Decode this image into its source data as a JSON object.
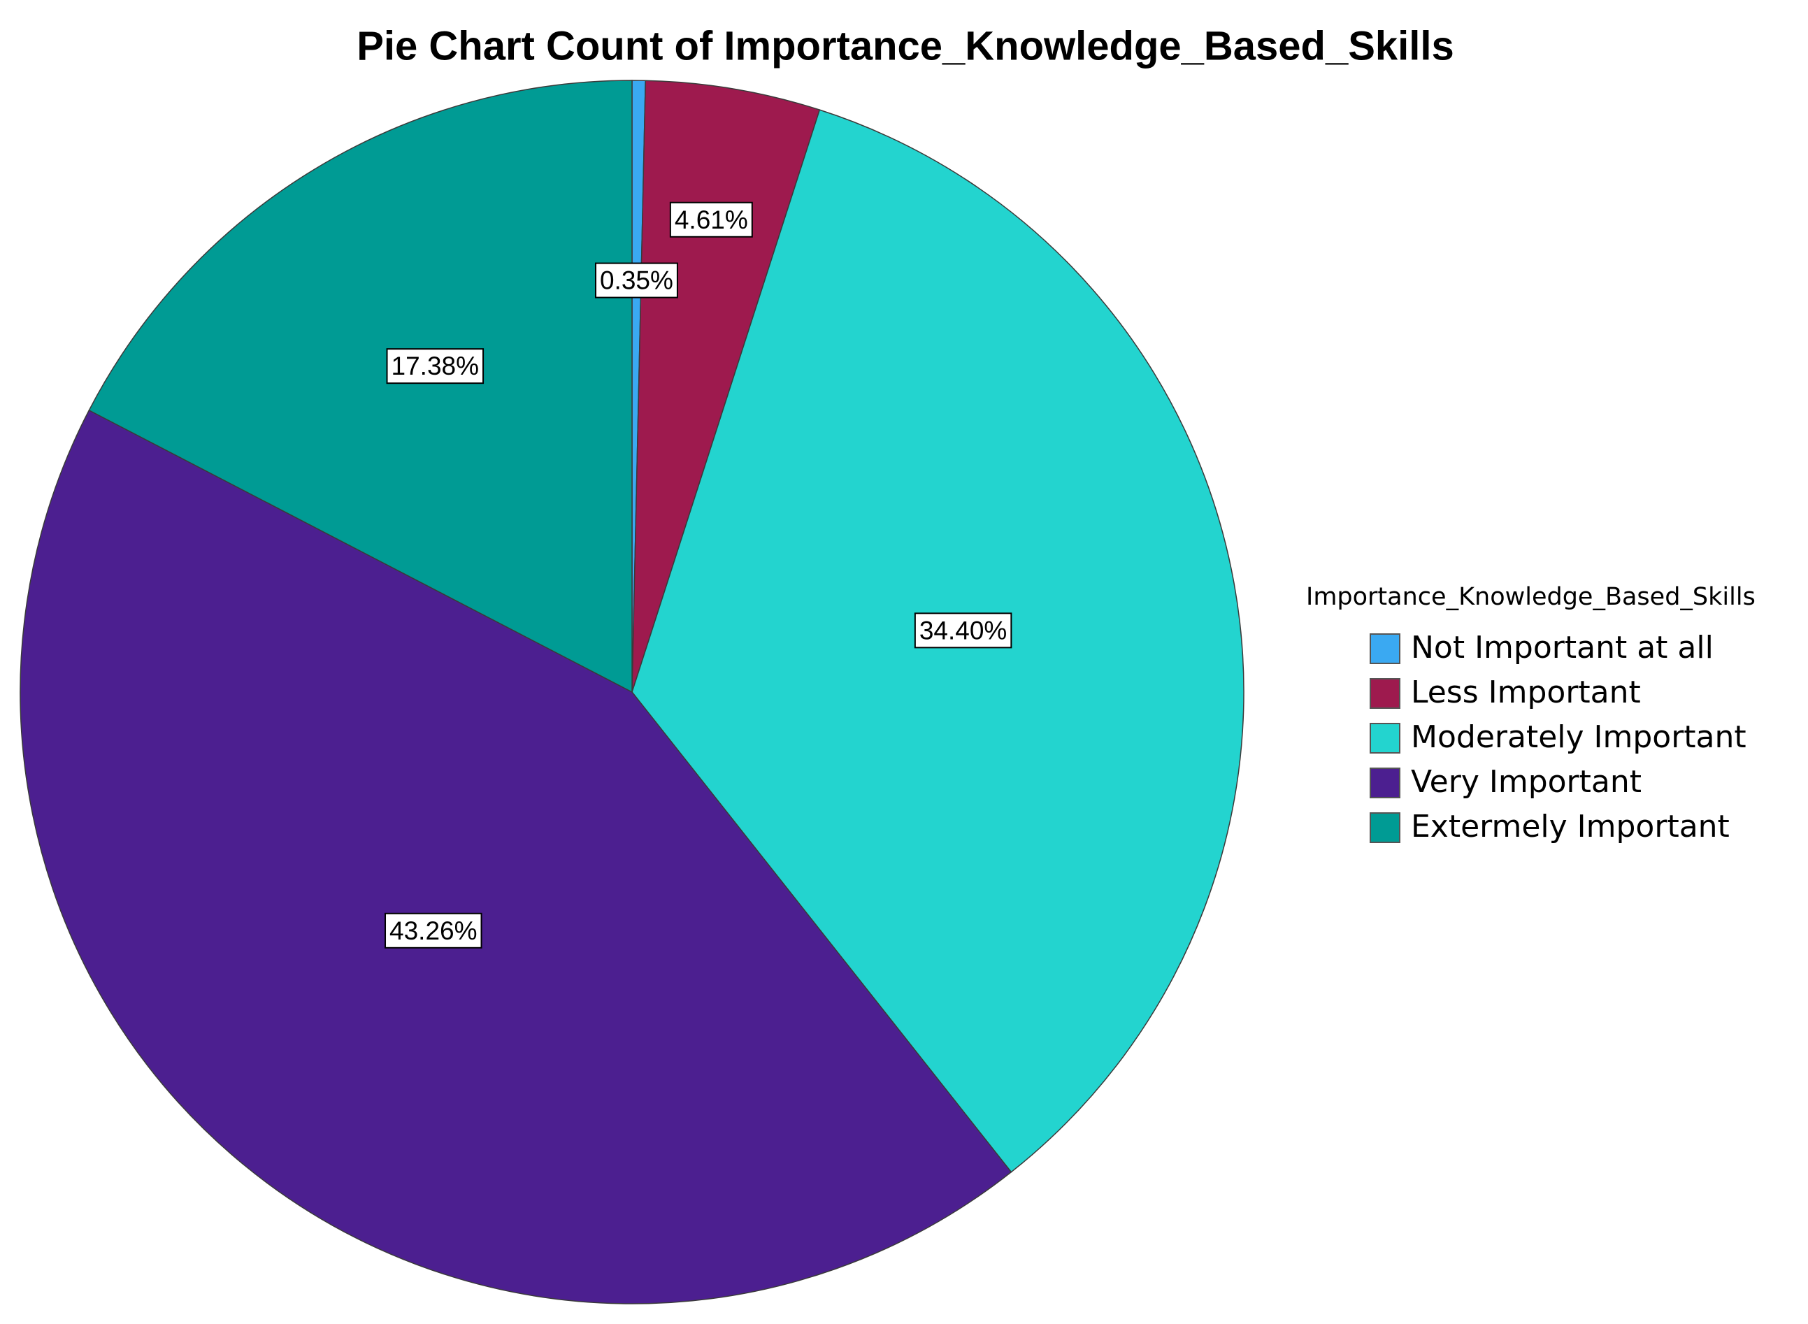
{
  "chart_data": {
    "type": "pie",
    "title": "Pie Chart Count of Importance_Knowledge_Based_Skills",
    "legend_title": "Importance_Knowledge_Based_Skills",
    "categories": [
      "Not Important at all",
      "Less Important",
      "Moderately Important",
      "Very Important",
      "Extermely Important"
    ],
    "values": [
      0.35,
      4.61,
      34.4,
      43.26,
      17.38
    ],
    "value_labels": [
      "0.35%",
      "4.61%",
      "34.40%",
      "43.26%",
      "17.38%"
    ],
    "colors": [
      "#3aa9f2",
      "#9e1a4e",
      "#23d4cf",
      "#4c1f90",
      "#009b94"
    ],
    "legend": "right"
  }
}
